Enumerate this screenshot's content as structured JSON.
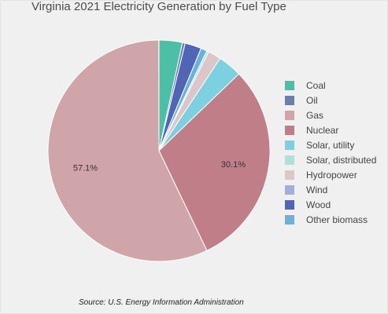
{
  "chart_data": {
    "type": "pie",
    "title": "Virginia 2021 Electricity Generation by Fuel Type",
    "source": "Source: U.S. Energy Information Administration",
    "legend_position": "right",
    "slices": [
      {
        "label": "Coal",
        "value": 3.4,
        "color": "#4dbfa6"
      },
      {
        "label": "Oil",
        "value": 0.4,
        "color": "#6c7fa8"
      },
      {
        "label": "Wood",
        "value": 2.4,
        "color": "#5066b5"
      },
      {
        "label": "Other biomass",
        "value": 0.9,
        "color": "#6ab2dc"
      },
      {
        "label": "Solar, distributed",
        "value": 0.3,
        "color": "#b2e0d8"
      },
      {
        "label": "Hydropower",
        "value": 1.9,
        "color": "#dcc6ca"
      },
      {
        "label": "Solar, utility",
        "value": 3.5,
        "color": "#7dd0e0"
      },
      {
        "label": "Nuclear",
        "value": 30.1,
        "color": "#c07e89",
        "data_label": "30.1%"
      },
      {
        "label": "Gas",
        "value": 57.1,
        "color": "#cfa5aa",
        "data_label": "57.1%"
      },
      {
        "label": "Wind",
        "value": 0.02,
        "color": "#a3b0d6"
      }
    ],
    "legend": [
      {
        "label": "Coal",
        "color": "#4dbfa6"
      },
      {
        "label": "Oil",
        "color": "#6c7fa8"
      },
      {
        "label": "Gas",
        "color": "#cfa5aa"
      },
      {
        "label": "Nuclear",
        "color": "#c07e89"
      },
      {
        "label": "Solar, utility",
        "color": "#7dd0e0"
      },
      {
        "label": "Solar, distributed",
        "color": "#b2e0d8"
      },
      {
        "label": "Hydropower",
        "color": "#dcc6ca"
      },
      {
        "label": "Wind",
        "color": "#a3b0d6"
      },
      {
        "label": "Wood",
        "color": "#5066b5"
      },
      {
        "label": "Other biomass",
        "color": "#6ab2dc"
      }
    ]
  }
}
